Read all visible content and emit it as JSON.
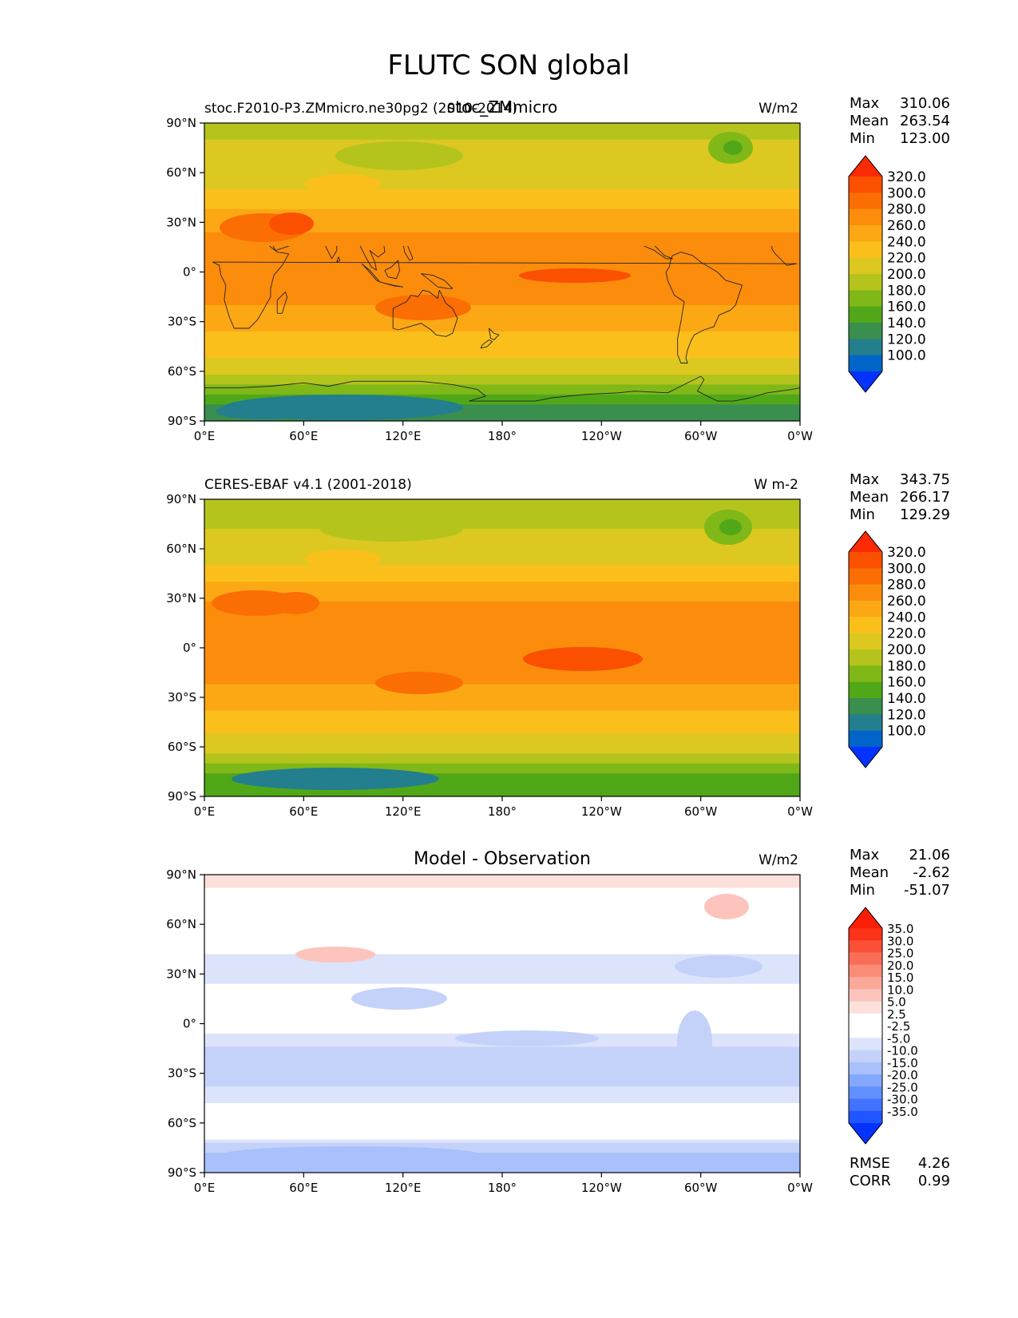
{
  "figure": {
    "title": "FLUTC SON global"
  },
  "colors": {
    "abs_levels": [
      "#0433ff",
      "#0064c8",
      "#237e8e",
      "#3a8e4e",
      "#50a818",
      "#80b818",
      "#b4c41c",
      "#dcc820",
      "#fbbf1c",
      "#fba814",
      "#fb8c0c",
      "#fb6e04",
      "#fb5000",
      "#fa2a05"
    ],
    "diff_levels": [
      "#0433ff",
      "#2055ff",
      "#4273ff",
      "#6390ff",
      "#85a8ff",
      "#a8c0fb",
      "#c4d2fa",
      "#dce4fb",
      "#ffffff",
      "#ffffff",
      "#fde0dc",
      "#fcc4bc",
      "#fba898",
      "#fb8c78",
      "#fa6e58",
      "#fa5038",
      "#fa3218",
      "#fa1e05"
    ]
  },
  "chart_data": [
    {
      "type": "heatmap",
      "panel_title_left": "stoc.F2010-P3.ZMmicro.ne30pg2 (2010-2014)",
      "panel_title_center": "stoc_ZMmicro",
      "units": "W/m2",
      "stats": {
        "max_label": "Max",
        "max": "310.06",
        "mean_label": "Mean",
        "mean": "263.54",
        "min_label": "Min",
        "min": "123.00"
      },
      "colorbar_ticks": [
        "100.0",
        "120.0",
        "140.0",
        "160.0",
        "180.0",
        "200.0",
        "220.0",
        "240.0",
        "260.0",
        "280.0",
        "300.0",
        "320.0"
      ],
      "xticks": [
        "0°E",
        "60°E",
        "120°E",
        "180°",
        "120°W",
        "60°W",
        "0°W"
      ],
      "yticks": [
        "90°N",
        "60°N",
        "30°N",
        "0°",
        "30°S",
        "60°S",
        "90°S"
      ],
      "xlim": [
        0,
        360
      ],
      "ylim": [
        -90,
        90
      ],
      "zonal_profile": {
        "lat": [
          90,
          75,
          60,
          45,
          30,
          15,
          0,
          -15,
          -30,
          -45,
          -60,
          -70,
          -80,
          -90
        ],
        "value": [
          205,
          212,
          218,
          235,
          265,
          278,
          272,
          275,
          260,
          238,
          218,
          185,
          150,
          145
        ]
      }
    },
    {
      "type": "heatmap",
      "panel_title_left": "CERES-EBAF v4.1 (2001-2018)",
      "units": "W m-2",
      "stats": {
        "max_label": "Max",
        "max": "343.75",
        "mean_label": "Mean",
        "mean": "266.17",
        "min_label": "Min",
        "min": "129.29"
      },
      "colorbar_ticks": [
        "100.0",
        "120.0",
        "140.0",
        "160.0",
        "180.0",
        "200.0",
        "220.0",
        "240.0",
        "260.0",
        "280.0",
        "300.0",
        "320.0"
      ],
      "xticks": [
        "0°E",
        "60°E",
        "120°E",
        "180°",
        "120°W",
        "60°W",
        "0°W"
      ],
      "yticks": [
        "90°N",
        "60°N",
        "30°N",
        "0°",
        "30°S",
        "60°S",
        "90°S"
      ],
      "xlim": [
        0,
        360
      ],
      "ylim": [
        -90,
        90
      ],
      "zonal_profile": {
        "lat": [
          90,
          75,
          60,
          45,
          30,
          15,
          0,
          -15,
          -30,
          -45,
          -60,
          -70,
          -80,
          -90
        ],
        "value": [
          200,
          208,
          216,
          238,
          268,
          282,
          275,
          278,
          262,
          240,
          220,
          190,
          160,
          150
        ]
      }
    },
    {
      "type": "heatmap",
      "panel_title_center": "Model - Observation",
      "units": "W/m2",
      "stats": {
        "max_label": "Max",
        "max": "21.06",
        "mean_label": "Mean",
        "mean": "-2.62",
        "min_label": "Min",
        "min": "-51.07"
      },
      "colorbar_ticks": [
        "-35.0",
        "-30.0",
        "-25.0",
        "-20.0",
        "-15.0",
        "-10.0",
        "-5.0",
        "-2.5",
        "2.5",
        "5.0",
        "10.0",
        "15.0",
        "20.0",
        "25.0",
        "30.0",
        "35.0"
      ],
      "metrics": {
        "rmse_label": "RMSE",
        "rmse": "4.26",
        "corr_label": "CORR",
        "corr": "0.99"
      },
      "xticks": [
        "0°E",
        "60°E",
        "120°E",
        "180°",
        "120°W",
        "60°W",
        "0°W"
      ],
      "yticks": [
        "90°N",
        "60°N",
        "30°N",
        "0°",
        "30°S",
        "60°S",
        "90°S"
      ],
      "xlim": [
        0,
        360
      ],
      "ylim": [
        -90,
        90
      ],
      "zonal_profile": {
        "lat": [
          90,
          75,
          60,
          45,
          30,
          15,
          0,
          -15,
          -30,
          -45,
          -60,
          -70,
          -80,
          -90
        ],
        "value": [
          6,
          4,
          2,
          -2,
          -4,
          0,
          -1,
          -5,
          -6,
          -4,
          3,
          -2,
          -12,
          -10
        ]
      }
    }
  ]
}
